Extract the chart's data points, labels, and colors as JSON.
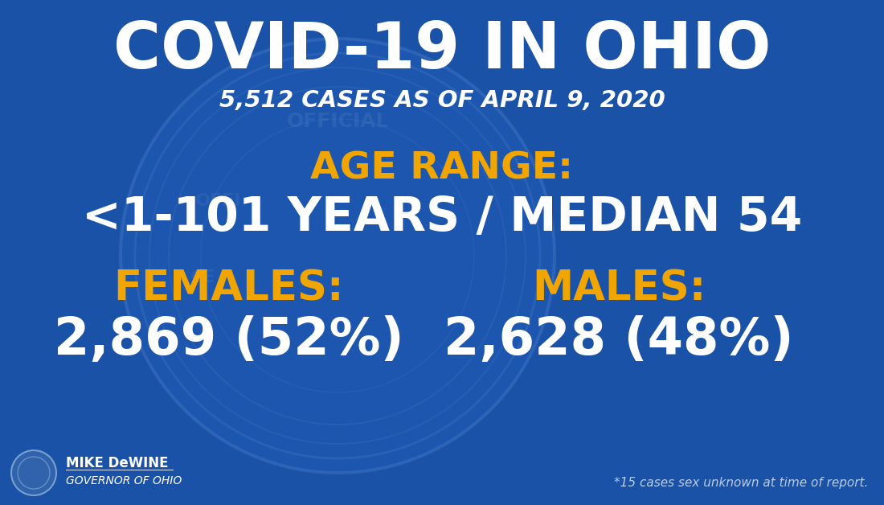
{
  "title_line1": "COVID-19 IN OHIO",
  "title_line2": "5,512 CASES AS OF APRIL 9, 2020",
  "age_range_label": "AGE RANGE:",
  "age_range_value": "<1-101 YEARS / MEDIAN 54",
  "females_label": "FEMALES:",
  "females_value": "2,869 (52%)",
  "males_label": "MALES:",
  "males_value": "2,628 (48%)",
  "footer_left_name": "MIKE DeWINE",
  "footer_left_title": "GOVERNOR OF OHIO",
  "footer_right": "*15 cases sex unknown at time of report.",
  "bg_color": "#1a52a8",
  "seal_color": "#2260be",
  "title_color": "#ffffff",
  "subtitle_color": "#ffffff",
  "gold_color": "#f0a500",
  "white_color": "#ffffff",
  "light_blue_text": "#b8cce8"
}
